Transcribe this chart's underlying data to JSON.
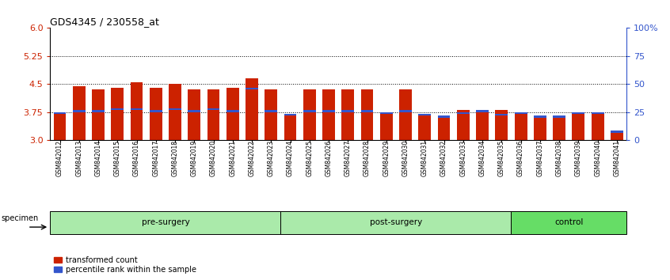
{
  "title": "GDS4345 / 230558_at",
  "samples": [
    "GSM842012",
    "GSM842013",
    "GSM842014",
    "GSM842015",
    "GSM842016",
    "GSM842017",
    "GSM842018",
    "GSM842019",
    "GSM842020",
    "GSM842021",
    "GSM842022",
    "GSM842023",
    "GSM842024",
    "GSM842025",
    "GSM842026",
    "GSM842027",
    "GSM842028",
    "GSM842029",
    "GSM842030",
    "GSM842031",
    "GSM842032",
    "GSM842033",
    "GSM842034",
    "GSM842035",
    "GSM842036",
    "GSM842037",
    "GSM842038",
    "GSM842039",
    "GSM842040",
    "GSM842041"
  ],
  "red_values": [
    3.75,
    4.45,
    4.35,
    4.4,
    4.55,
    4.4,
    4.5,
    4.35,
    4.35,
    4.4,
    4.65,
    4.35,
    3.65,
    4.35,
    4.35,
    4.35,
    4.35,
    3.75,
    4.35,
    3.65,
    3.65,
    3.8,
    3.8,
    3.8,
    3.75,
    3.65,
    3.65,
    3.75,
    3.75,
    3.25
  ],
  "blue_positions": [
    3.7,
    3.75,
    3.75,
    3.8,
    3.8,
    3.75,
    3.8,
    3.75,
    3.8,
    3.75,
    4.35,
    3.75,
    3.65,
    3.75,
    3.75,
    3.75,
    3.75,
    3.7,
    3.75,
    3.65,
    3.6,
    3.7,
    3.75,
    3.65,
    3.7,
    3.6,
    3.6,
    3.7,
    3.7,
    3.2
  ],
  "blue_heights": [
    0.05,
    0.05,
    0.05,
    0.05,
    0.05,
    0.05,
    0.05,
    0.05,
    0.05,
    0.05,
    0.05,
    0.05,
    0.05,
    0.05,
    0.05,
    0.05,
    0.05,
    0.05,
    0.05,
    0.05,
    0.05,
    0.05,
    0.05,
    0.05,
    0.05,
    0.05,
    0.05,
    0.05,
    0.05,
    0.05
  ],
  "group_configs": [
    {
      "label": "pre-surgery",
      "start": 0,
      "end": 11,
      "color": "#AAEAAA"
    },
    {
      "label": "post-surgery",
      "start": 12,
      "end": 23,
      "color": "#AAEAAA"
    },
    {
      "label": "control",
      "start": 24,
      "end": 29,
      "color": "#66DD66"
    }
  ],
  "ymin": 3.0,
  "ymax": 6.0,
  "yticks_left": [
    3.0,
    3.75,
    4.5,
    5.25,
    6.0
  ],
  "yticks_right": [
    0,
    25,
    50,
    75,
    100
  ],
  "ytick_right_labels": [
    "0",
    "25",
    "50",
    "75",
    "100%"
  ],
  "hlines": [
    3.75,
    4.5,
    5.25
  ],
  "bar_color": "#CC2200",
  "blue_color": "#3355CC",
  "bar_width": 0.65,
  "bg_color": "#FFFFFF",
  "tick_label_color_left": "#CC2200",
  "tick_label_color_right": "#3355CC"
}
